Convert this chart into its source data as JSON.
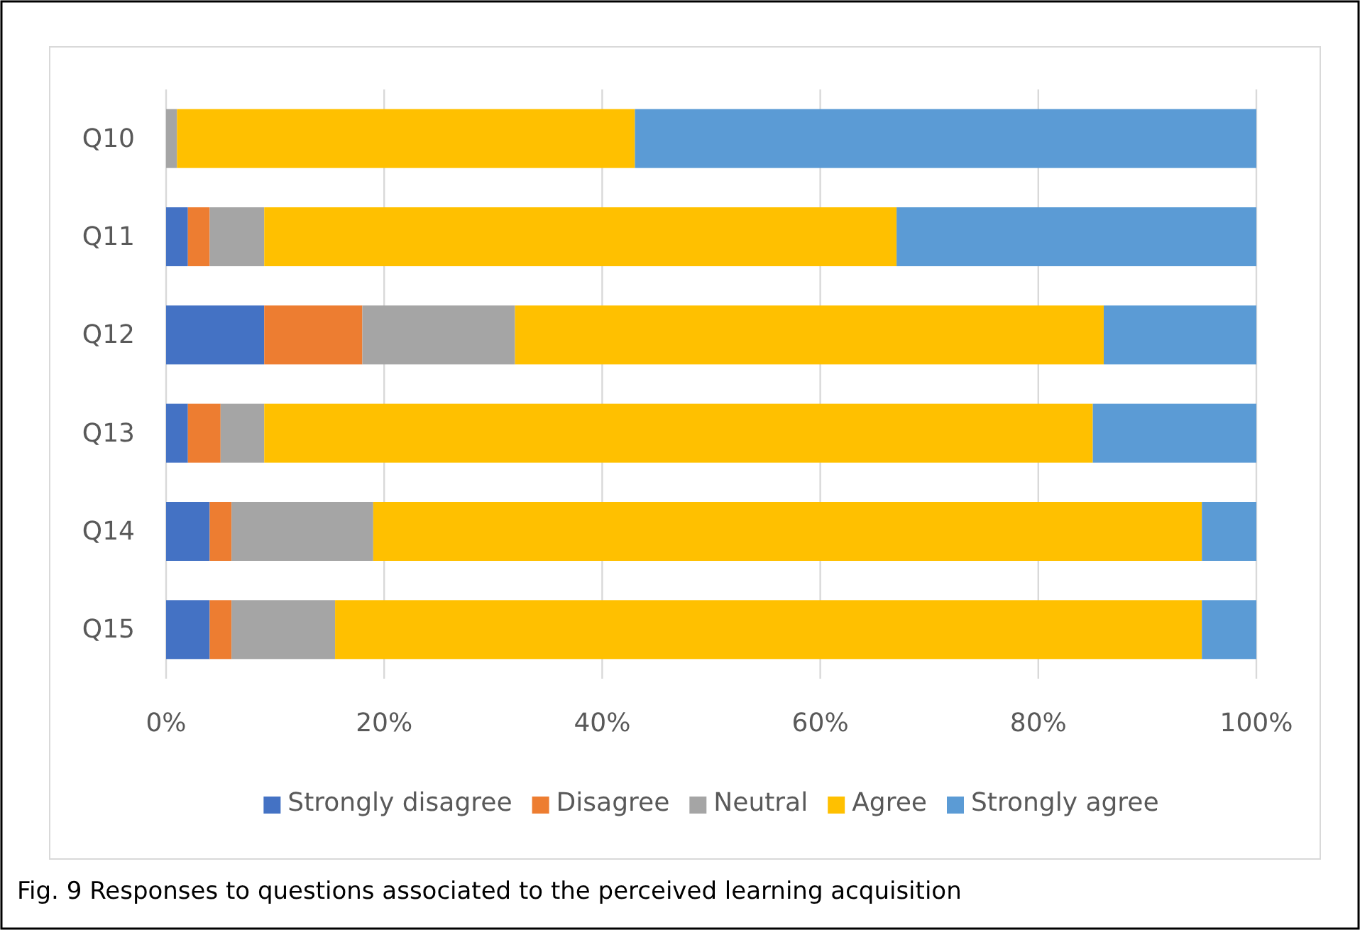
{
  "chart_data": {
    "type": "bar",
    "orientation": "horizontal",
    "stacked": true,
    "categories": [
      "Q10",
      "Q11",
      "Q12",
      "Q13",
      "Q14",
      "Q15"
    ],
    "series": [
      {
        "name": "Strongly disagree",
        "color": "#4472c4",
        "values": [
          0,
          2,
          9,
          2,
          4,
          4
        ]
      },
      {
        "name": "Disagree",
        "color": "#ed7d31",
        "values": [
          0,
          2,
          9,
          3,
          2,
          2
        ]
      },
      {
        "name": "Neutral",
        "color": "#a5a5a5",
        "values": [
          1,
          5,
          14,
          4,
          13,
          9.5
        ]
      },
      {
        "name": "Agree",
        "color": "#ffc000",
        "values": [
          42,
          58,
          54,
          76,
          76,
          79.5
        ]
      },
      {
        "name": "Strongly agree",
        "color": "#5b9bd5",
        "values": [
          57,
          33,
          14,
          15,
          5,
          5
        ]
      }
    ],
    "xlim": [
      0,
      100
    ],
    "xticks": [
      {
        "value": 0,
        "label": "0%"
      },
      {
        "value": 20,
        "label": "20%"
      },
      {
        "value": 40,
        "label": "40%"
      },
      {
        "value": 60,
        "label": "60%"
      },
      {
        "value": 80,
        "label": "80%"
      },
      {
        "value": 100,
        "label": "100%"
      }
    ],
    "grid": "x",
    "legend": "bottom",
    "annotations": [
      "Fig. 9 Responses to questions associated to the perceived learning acquisition"
    ]
  }
}
